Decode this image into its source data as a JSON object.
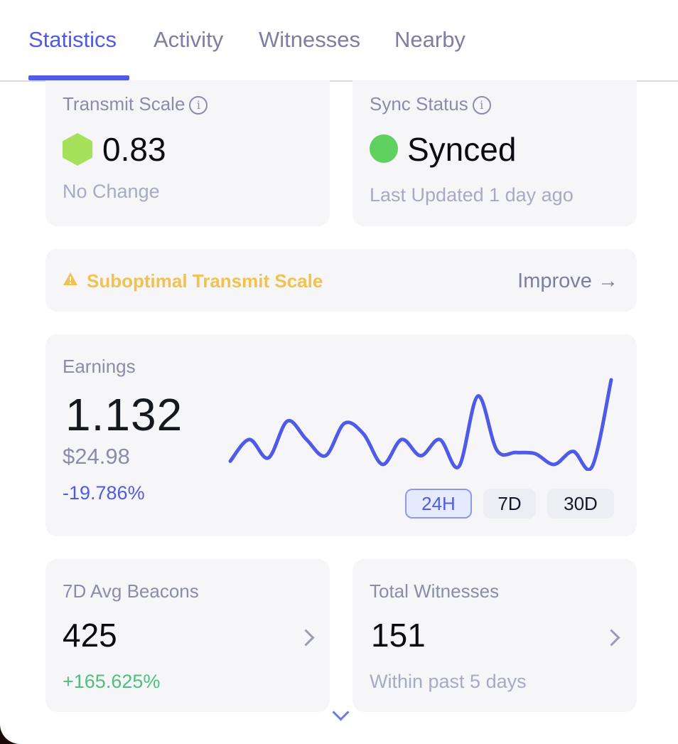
{
  "tabs": [
    {
      "label": "Statistics",
      "active": true
    },
    {
      "label": "Activity",
      "active": false
    },
    {
      "label": "Witnesses",
      "active": false
    },
    {
      "label": "Nearby",
      "active": false
    }
  ],
  "transmit": {
    "label": "Transmit Scale",
    "value": "0.83",
    "change": "No Change",
    "icon": "hexagon-icon",
    "color": "#a6e15c"
  },
  "sync": {
    "label": "Sync Status",
    "value": "Synced",
    "updated": "Last Updated 1 day ago",
    "icon": "status-dot-icon",
    "color": "#5fd15f"
  },
  "warning": {
    "text": "Suboptimal Transmit Scale",
    "action": "Improve →",
    "icon": "warning-icon",
    "color": "#f2c14e"
  },
  "earnings": {
    "label": "Earnings",
    "value": "1.132",
    "usd": "$24.98",
    "change": "-19.786%",
    "ranges": [
      "24H",
      "7D",
      "30D"
    ],
    "selected_range": "24H"
  },
  "chart_data": {
    "type": "line",
    "values": [
      0.25,
      0.45,
      0.28,
      0.62,
      0.45,
      0.3,
      0.6,
      0.5,
      0.22,
      0.45,
      0.3,
      0.45,
      0.2,
      0.85,
      0.35,
      0.33,
      0.32,
      0.22,
      0.34,
      0.2,
      1.0
    ],
    "color": "#4f5be6"
  },
  "beacons": {
    "label": "7D Avg Beacons",
    "value": "425",
    "change": "+165.625%"
  },
  "witnesses": {
    "label": "Total Witnesses",
    "value": "151",
    "note": "Within past 5 days"
  },
  "accent_color": "#4f5be6"
}
